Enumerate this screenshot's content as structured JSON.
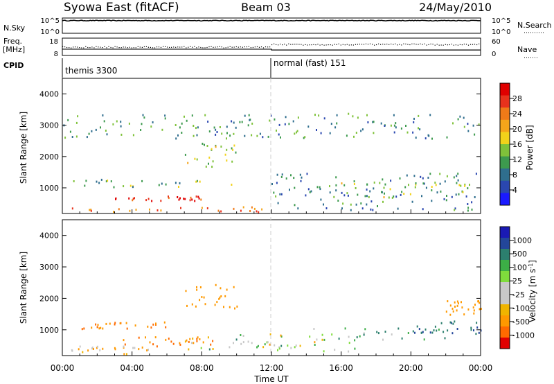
{
  "header": {
    "title": "Syowa East (fitACF)",
    "beam": "Beam 03",
    "date": "24/May/2010"
  },
  "panel_labels": {
    "nsky": "N.Sky",
    "nsky_top": "10^5",
    "nsky_bottom": "10^0",
    "nsearch": "N.Search",
    "nsearch_top": "10^5",
    "nsearch_bottom": "10^0",
    "freq": "Freq.",
    "freq_unit": "[MHz]",
    "freq_top": "18",
    "freq_bottom": "8",
    "nave": "Nave",
    "nave_top": "60",
    "nave_bottom": "0",
    "cpid": "CPID",
    "cpid_mode1": "themis 3300",
    "cpid_mode2": "normal (fast) 151"
  },
  "colors": {
    "power": [
      "#1a1aff",
      "#2a47b0",
      "#2f6e8e",
      "#3d9a4e",
      "#7fc23a",
      "#f2d21a",
      "#f5a51a",
      "#f07a18",
      "#e8321c",
      "#e00000"
    ],
    "velocity": [
      "#e00000",
      "#ff6a00",
      "#ff9900",
      "#f0b400",
      "#c8c8c8",
      "#c8c8c8",
      "#7fdc3c",
      "#3cae46",
      "#2c7f6e",
      "#23469a",
      "#1a1ab4"
    ]
  },
  "chart_data": [
    {
      "type": "line",
      "title": "N.Sky / N.Search",
      "xlabel": "",
      "ylabel": "N.Sky",
      "y2label": "N.Search",
      "yscale": "log",
      "ylim": [
        1,
        100000
      ],
      "y_ticks": [
        "10^5",
        "10^0"
      ],
      "x_hours": [
        0,
        24
      ],
      "series": [
        {
          "name": "N.Sky",
          "level": "~2x10^4 (near constant)",
          "values": [
            20000,
            20000
          ]
        }
      ]
    },
    {
      "type": "scatter",
      "title": "Freq. / Nave",
      "ylabel": "Freq. [MHz]",
      "y2label": "Nave",
      "ylim": [
        8,
        18
      ],
      "y2lim": [
        0,
        60
      ],
      "x_hours": [
        0,
        12,
        12,
        24
      ],
      "series": [
        {
          "name": "Freq.",
          "values": [
            11.5,
            11.5,
            11.0,
            11.0
          ]
        },
        {
          "name": "Nave",
          "values": [
            30,
            30,
            40,
            40
          ]
        }
      ]
    },
    {
      "type": "table",
      "title": "CPID",
      "x_hours": [
        0,
        12
      ],
      "values": [
        "themis 3300",
        "normal (fast) 151"
      ]
    },
    {
      "type": "heatmap",
      "quantity": "power",
      "ylabel": "Slant Range [km]",
      "xlabel": "",
      "colorbar_label": "Power [dB]",
      "colorbar_ticks": [
        "28",
        "24",
        "20",
        "16",
        "12",
        "8",
        "4"
      ],
      "clim": [
        0,
        30
      ],
      "xlim_hours": [
        0,
        24
      ],
      "ylim": [
        180,
        4500
      ],
      "y_ticks": [
        "4000",
        "3000",
        "2000",
        "1000"
      ],
      "regions": [
        {
          "t": [
            0.5,
            12
          ],
          "r": [
            250,
            420
          ],
          "value": 22
        },
        {
          "t": [
            3,
            8
          ],
          "r": [
            600,
            760
          ],
          "value": 26
        },
        {
          "t": [
            0.5,
            11
          ],
          "r": [
            1050,
            1300
          ],
          "value": 12
        },
        {
          "t": [
            7,
            10
          ],
          "r": [
            1700,
            2500
          ],
          "value": 14
        },
        {
          "t": [
            12,
            23.8
          ],
          "r": [
            300,
            1500
          ],
          "value": 8
        },
        {
          "t": [
            15.5,
            24
          ],
          "r": [
            700,
            1200
          ],
          "value": 14
        },
        {
          "t": [
            0,
            24
          ],
          "r": [
            2600,
            3400
          ],
          "value": 10
        }
      ]
    },
    {
      "type": "heatmap",
      "quantity": "velocity",
      "ylabel": "Slant Range [km]",
      "xlabel": "Time UT",
      "colorbar_label": "Velocity [m s^-1]",
      "colorbar_ticks": [
        "1000",
        "500",
        "100",
        "25",
        "-25",
        "-100",
        "-500",
        "-1000"
      ],
      "clim": [
        -1000,
        1000
      ],
      "xlim_hours": [
        0,
        24
      ],
      "ylim": [
        180,
        4500
      ],
      "y_ticks": [
        "4000",
        "3000",
        "2000",
        "1000"
      ],
      "x_ticks": [
        "00:00",
        "04:00",
        "08:00",
        "12:00",
        "16:00",
        "20:00",
        "00:00"
      ],
      "regions": [
        {
          "t": [
            0.5,
            6
          ],
          "r": [
            250,
            500
          ],
          "value": -100
        },
        {
          "t": [
            3,
            9
          ],
          "r": [
            500,
            800
          ],
          "value": -500
        },
        {
          "t": [
            7,
            12
          ],
          "r": [
            400,
            900
          ],
          "value": 0
        },
        {
          "t": [
            1,
            6
          ],
          "r": [
            1050,
            1300
          ],
          "value": -500
        },
        {
          "t": [
            7,
            10
          ],
          "r": [
            1700,
            2500
          ],
          "value": -300
        },
        {
          "t": [
            12,
            17
          ],
          "r": [
            300,
            900
          ],
          "value": 0
        },
        {
          "t": [
            14,
            22
          ],
          "r": [
            700,
            1100
          ],
          "value": 100
        },
        {
          "t": [
            20,
            24
          ],
          "r": [
            900,
            1300
          ],
          "value": 500
        },
        {
          "t": [
            22,
            24
          ],
          "r": [
            1500,
            2000
          ],
          "value": -300
        }
      ]
    }
  ]
}
